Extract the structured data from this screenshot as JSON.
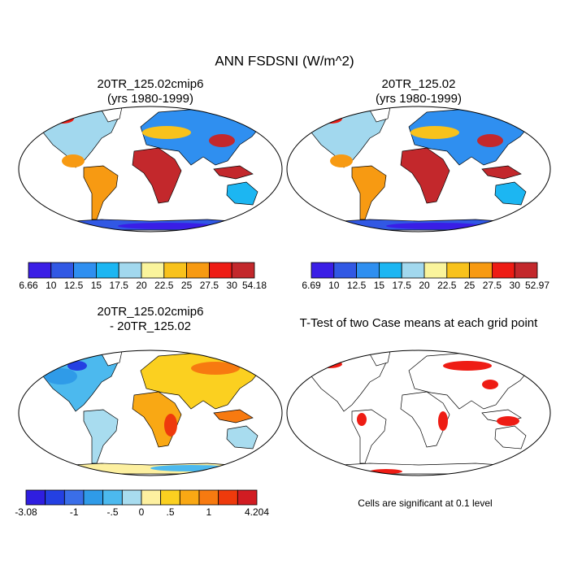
{
  "title": "ANN FSDSNI (W/m^2)",
  "panels": [
    {
      "title_lines": [
        "20TR_125.02cmip6",
        "(yrs 1980-1999)"
      ],
      "colorbar": {
        "colors": [
          "#3a1ee6",
          "#3158e4",
          "#2f8ff0",
          "#1cb6f2",
          "#a2d8ee",
          "#faf49c",
          "#f8c21c",
          "#f79a12",
          "#ee1c14",
          "#c3282c"
        ],
        "labels": [
          "6.66",
          "10",
          "12.5",
          "15",
          "17.5",
          "20",
          "22.5",
          "25",
          "27.5",
          "30",
          "54.18"
        ]
      }
    },
    {
      "title_lines": [
        "20TR_125.02",
        "(yrs 1980-1999)"
      ],
      "colorbar": {
        "colors": [
          "#3a1ee6",
          "#3158e4",
          "#2f8ff0",
          "#1cb6f2",
          "#a2d8ee",
          "#faf49c",
          "#f8c21c",
          "#f79a12",
          "#ee1c14",
          "#c3282c"
        ],
        "labels": [
          "6.69",
          "10",
          "12.5",
          "15",
          "17.5",
          "20",
          "22.5",
          "25",
          "27.5",
          "30",
          "52.97"
        ]
      }
    },
    {
      "title_lines": [
        "20TR_125.02cmip6",
        "- 20TR_125.02"
      ],
      "colorbar": {
        "colors": [
          "#2f1ee0",
          "#2440e2",
          "#3a6ee8",
          "#2f9be8",
          "#4cb9ee",
          "#a8dcef",
          "#fdf0a0",
          "#fbd020",
          "#f9a814",
          "#f77a10",
          "#ee3a0c",
          "#d11c22"
        ],
        "labels": [
          "-3.08",
          "-1",
          "-.5",
          "0",
          ".5",
          "1",
          "4.204"
        ]
      }
    },
    {
      "title_lines": [
        "T-Test of two Case means at each grid point"
      ],
      "note": "Cells are significant at 0.1 level"
    }
  ]
}
